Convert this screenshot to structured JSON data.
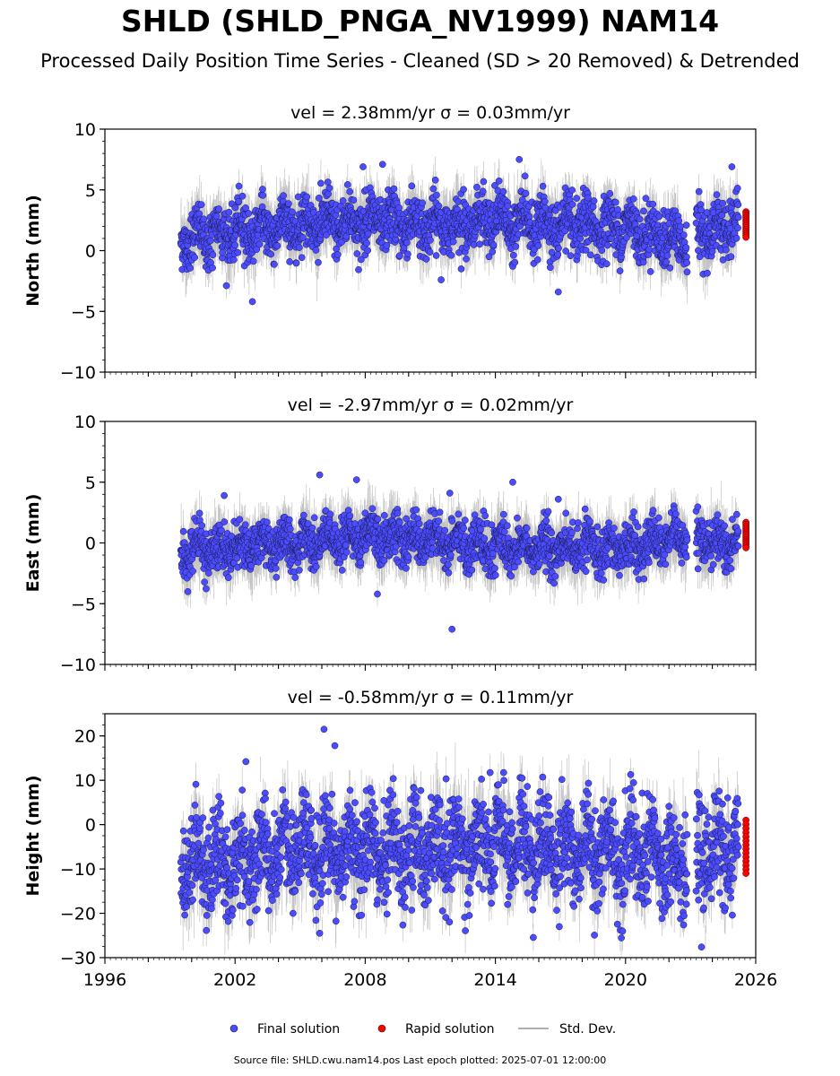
{
  "title": "SHLD (SHLD_PNGA_NV1999) NAM14",
  "subtitle": "Processed Daily Position Time Series - Cleaned (SD > 20 Removed) & Detrended",
  "footer": "Source file: SHLD.cwu.nam14.pos  Last epoch plotted: 2025-07-01 12:00:00",
  "legend": {
    "final": "Final solution",
    "rapid": "Rapid solution",
    "std": "Std. Dev."
  },
  "colors": {
    "final": "#4b4bff",
    "rapid": "#ff0000",
    "std": "#b0b0b0"
  },
  "chart_data": [
    {
      "type": "scatter",
      "title": "vel = 2.38mm/yr   σ = 0.03mm/yr",
      "ylabel": "North (mm)",
      "xlim": [
        1996,
        2026
      ],
      "ylim": [
        -10,
        10
      ],
      "xticks": [
        "1996",
        "2002",
        "2008",
        "2014",
        "2020",
        "2026"
      ],
      "yticks": [
        "10",
        "5",
        "0",
        "−5",
        "−10"
      ],
      "ytick_values": [
        10,
        5,
        0,
        -5,
        -10
      ],
      "series": [
        {
          "name": "Final solution",
          "trend_x": [
            1999.5,
            2002,
            2005,
            2008,
            2011,
            2014,
            2017,
            2020,
            2022.8,
            2023.3,
            2025.2
          ],
          "trend_y": [
            1.0,
            1.5,
            2.2,
            2.4,
            2.1,
            2.5,
            2.0,
            2.0,
            0.5,
            1.4,
            2.2
          ],
          "spread": 1.3,
          "outliers_x": [
            2002.8,
            2007.9,
            2008.8,
            2015.1,
            2016.9,
            2011.5,
            2024.9
          ],
          "outliers_y": [
            -4.2,
            6.9,
            7.1,
            7.5,
            -3.4,
            -2.4,
            6.9
          ]
        },
        {
          "name": "Rapid solution",
          "x": [
            2025.2,
            2025.3,
            2025.4,
            2025.5
          ],
          "y": [
            3.2,
            2.5,
            1.8,
            1.1
          ]
        }
      ]
    },
    {
      "type": "scatter",
      "title": "vel = -2.97mm/yr   σ = 0.02mm/yr",
      "ylabel": "East (mm)",
      "xlim": [
        1996,
        2026
      ],
      "ylim": [
        -10,
        10
      ],
      "xticks": [
        "1996",
        "2002",
        "2008",
        "2014",
        "2020",
        "2026"
      ],
      "yticks": [
        "10",
        "5",
        "0",
        "−5",
        "−10"
      ],
      "ytick_values": [
        10,
        5,
        0,
        -5,
        -10
      ],
      "series": [
        {
          "name": "Final solution",
          "trend_x": [
            1999.5,
            2002,
            2005,
            2008,
            2011,
            2014,
            2017,
            2020,
            2022.8,
            2023.3,
            2025.2
          ],
          "trend_y": [
            -0.8,
            -0.5,
            0.0,
            0.6,
            0.2,
            -0.3,
            -0.5,
            -0.3,
            0.3,
            0.2,
            0.0
          ],
          "spread": 1.1,
          "outliers_x": [
            2005.9,
            2007.6,
            2012.0,
            2014.8,
            2016.9,
            2011.9,
            2001.5
          ],
          "outliers_y": [
            5.6,
            5.2,
            -7.1,
            5.0,
            3.6,
            4.1,
            3.9
          ]
        },
        {
          "name": "Rapid solution",
          "x": [
            2025.2,
            2025.3,
            2025.4,
            2025.5
          ],
          "y": [
            1.7,
            1.0,
            0.2,
            -0.4
          ]
        }
      ]
    },
    {
      "type": "scatter",
      "title": "vel = -0.58mm/yr   σ = 0.11mm/yr",
      "ylabel": "Height (mm)",
      "xlim": [
        1996,
        2026
      ],
      "ylim": [
        -30,
        25
      ],
      "xticks": [
        "1996",
        "2002",
        "2008",
        "2014",
        "2020",
        "2026"
      ],
      "yticks": [
        "20",
        "10",
        "0",
        "−10",
        "−20",
        "−30"
      ],
      "ytick_values": [
        20,
        10,
        0,
        -10,
        -20,
        -30
      ],
      "series": [
        {
          "name": "Final solution",
          "trend_x": [
            1999.5,
            2002,
            2005,
            2008,
            2011,
            2014,
            2017,
            2020,
            2022.8,
            2023.3,
            2025.2
          ],
          "trend_y": [
            -8,
            -9,
            -6,
            -5,
            -6,
            -4,
            -5,
            -7,
            -8,
            -7,
            -5
          ],
          "spread": 6.5,
          "outliers_x": [
            2006.1,
            2006.6,
            2005.9,
            2002.5,
            2023.5
          ],
          "outliers_y": [
            21.5,
            17.8,
            -24.5,
            14.2,
            -27.6
          ]
        },
        {
          "name": "Rapid solution",
          "x": [
            2025.2,
            2025.3,
            2025.4,
            2025.5
          ],
          "y": [
            1.0,
            -3.0,
            -7.0,
            -11.0
          ]
        }
      ]
    }
  ]
}
